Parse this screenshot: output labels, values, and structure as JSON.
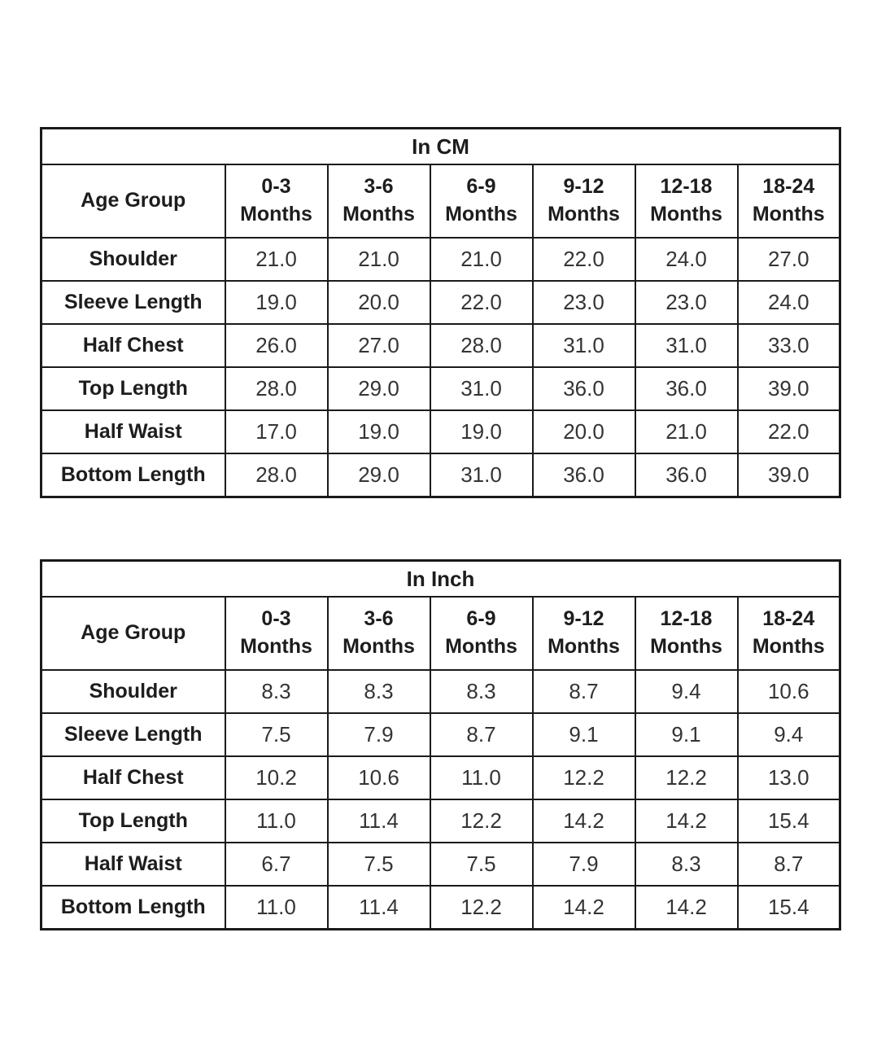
{
  "colors": {
    "background": "#ffffff",
    "border": "#1a1a1a",
    "label_text": "#1d1d1d",
    "value_text": "#343434"
  },
  "tables": [
    {
      "title": "In CM",
      "corner_label": "Age Group",
      "columns": [
        {
          "range": "0-3",
          "unit": "Months"
        },
        {
          "range": "3-6",
          "unit": "Months"
        },
        {
          "range": "6-9",
          "unit": "Months"
        },
        {
          "range": "9-12",
          "unit": "Months"
        },
        {
          "range": "12-18",
          "unit": "Months"
        },
        {
          "range": "18-24",
          "unit": "Months"
        }
      ],
      "rows": [
        {
          "label": "Shoulder",
          "values": [
            "21.0",
            "21.0",
            "21.0",
            "22.0",
            "24.0",
            "27.0"
          ]
        },
        {
          "label": "Sleeve Length",
          "values": [
            "19.0",
            "20.0",
            "22.0",
            "23.0",
            "23.0",
            "24.0"
          ]
        },
        {
          "label": "Half Chest",
          "values": [
            "26.0",
            "27.0",
            "28.0",
            "31.0",
            "31.0",
            "33.0"
          ]
        },
        {
          "label": "Top Length",
          "values": [
            "28.0",
            "29.0",
            "31.0",
            "36.0",
            "36.0",
            "39.0"
          ]
        },
        {
          "label": "Half Waist",
          "values": [
            "17.0",
            "19.0",
            "19.0",
            "20.0",
            "21.0",
            "22.0"
          ]
        },
        {
          "label": "Bottom Length",
          "values": [
            "28.0",
            "29.0",
            "31.0",
            "36.0",
            "36.0",
            "39.0"
          ]
        }
      ]
    },
    {
      "title": "In Inch",
      "corner_label": "Age Group",
      "columns": [
        {
          "range": "0-3",
          "unit": "Months"
        },
        {
          "range": "3-6",
          "unit": "Months"
        },
        {
          "range": "6-9",
          "unit": "Months"
        },
        {
          "range": "9-12",
          "unit": "Months"
        },
        {
          "range": "12-18",
          "unit": "Months"
        },
        {
          "range": "18-24",
          "unit": "Months"
        }
      ],
      "rows": [
        {
          "label": "Shoulder",
          "values": [
            "8.3",
            "8.3",
            "8.3",
            "8.7",
            "9.4",
            "10.6"
          ]
        },
        {
          "label": "Sleeve Length",
          "values": [
            "7.5",
            "7.9",
            "8.7",
            "9.1",
            "9.1",
            "9.4"
          ]
        },
        {
          "label": "Half Chest",
          "values": [
            "10.2",
            "10.6",
            "11.0",
            "12.2",
            "12.2",
            "13.0"
          ]
        },
        {
          "label": "Top Length",
          "values": [
            "11.0",
            "11.4",
            "12.2",
            "14.2",
            "14.2",
            "15.4"
          ]
        },
        {
          "label": "Half Waist",
          "values": [
            "6.7",
            "7.5",
            "7.5",
            "7.9",
            "8.3",
            "8.7"
          ]
        },
        {
          "label": "Bottom Length",
          "values": [
            "11.0",
            "11.4",
            "12.2",
            "14.2",
            "14.2",
            "15.4"
          ]
        }
      ]
    }
  ]
}
